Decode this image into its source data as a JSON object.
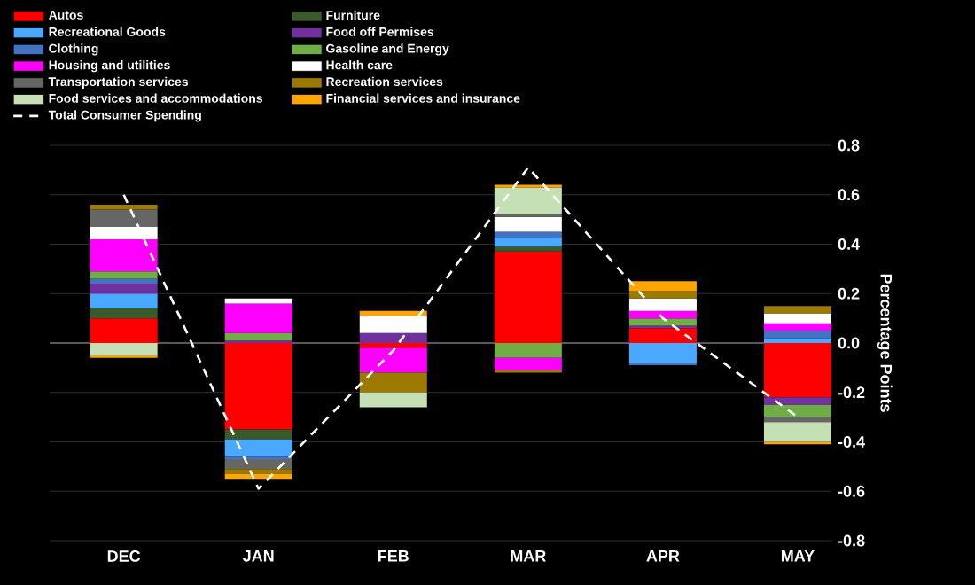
{
  "chart_data": {
    "type": "bar",
    "stacked": true,
    "ylabel": "Percentage Points",
    "categories": [
      "DEC",
      "JAN",
      "FEB",
      "MAR",
      "APR",
      "MAY"
    ],
    "ylim": [
      -0.8,
      0.8
    ],
    "yticks": [
      -0.8,
      -0.6,
      -0.4,
      -0.2,
      {
        "value": 0,
        "label": "0.0"
      },
      0.2,
      0.4,
      0.6,
      0.8
    ],
    "grid": "y",
    "legend": "top left",
    "series": [
      {
        "name": "Autos",
        "color": "#ff0000",
        "values": [
          0.1,
          -0.35,
          -0.02,
          0.37,
          0.06,
          -0.22
        ]
      },
      {
        "name": "Furniture",
        "color": "#3b5a2c",
        "values": [
          0.04,
          -0.04,
          0,
          0.02,
          0,
          0
        ]
      },
      {
        "name": "Recreational Goods",
        "color": "#4aa8ff",
        "values": [
          0.06,
          -0.07,
          0,
          0.04,
          -0.08,
          0.02
        ]
      },
      {
        "name": "Food off Permises",
        "color": "#7030a0",
        "values": [
          0.04,
          0.01,
          0.04,
          0,
          0.01,
          -0.03
        ]
      },
      {
        "name": "Clothing",
        "color": "#4472c4",
        "values": [
          0.02,
          -0.01,
          0,
          0.02,
          -0.01,
          0.03
        ]
      },
      {
        "name": "Gasoline and Energy",
        "color": "#70ad47",
        "values": [
          0.03,
          0.03,
          0,
          -0.06,
          0.03,
          -0.05
        ]
      },
      {
        "name": "Housing and utilities",
        "color": "#ff00ff",
        "values": [
          0.13,
          0.12,
          -0.1,
          -0.05,
          0.03,
          0.03
        ]
      },
      {
        "name": "Health care",
        "color": "#ffffff",
        "values": [
          0.05,
          0.02,
          0.07,
          0.06,
          0.05,
          0.04
        ]
      },
      {
        "name": "Transportation services",
        "color": "#666666",
        "values": [
          0.07,
          -0.04,
          0,
          0.01,
          0,
          -0.02
        ]
      },
      {
        "name": "Recreation services",
        "color": "#9c7a00",
        "values": [
          0.02,
          -0.02,
          -0.08,
          -0.01,
          0.03,
          0.03
        ]
      },
      {
        "name": "Food services and accommodations",
        "color": "#c5e0b4",
        "values": [
          -0.05,
          0,
          -0.06,
          0.11,
          0,
          -0.08
        ]
      },
      {
        "name": "Financial services and insurance",
        "color": "#ffa500",
        "values": [
          -0.01,
          -0.02,
          0.02,
          0.01,
          0.04,
          -0.01
        ]
      },
      {
        "name": "Total Consumer Spending",
        "type": "line",
        "line_style": "dashed",
        "color": "#ffffff",
        "values": [
          0.6,
          -0.59,
          -0.03,
          0.71,
          0.1,
          -0.3
        ]
      }
    ]
  }
}
